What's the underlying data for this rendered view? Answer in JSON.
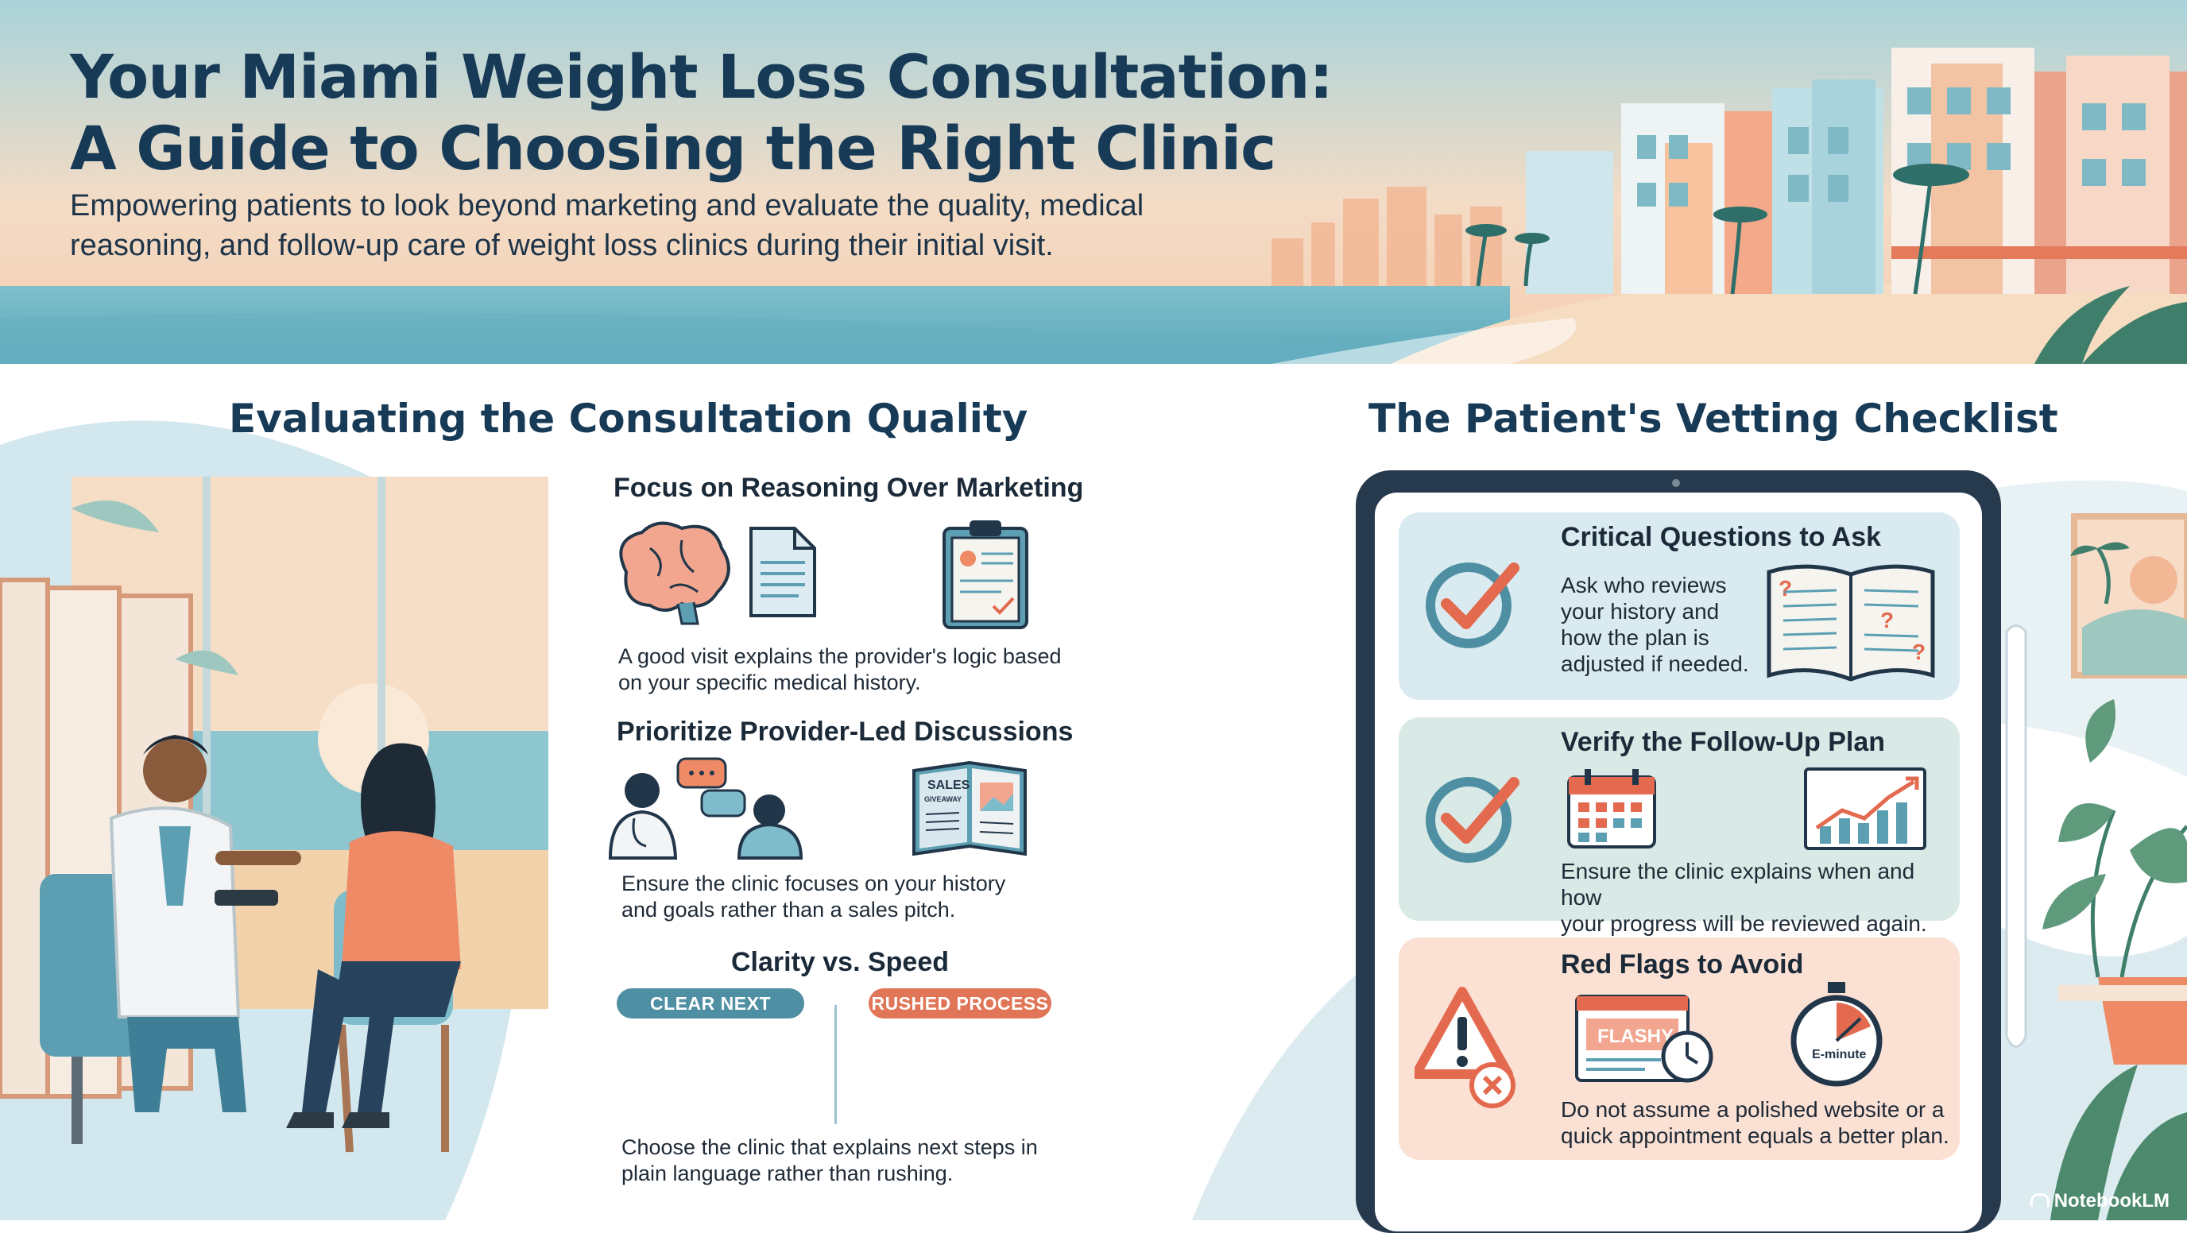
{
  "header": {
    "title_line1": "Your Miami Weight Loss Consultation:",
    "title_line2": "A Guide to Choosing the Right Clinic",
    "subtitle_line1": "Empowering patients to look beyond marketing and evaluate the quality, medical",
    "subtitle_line2": "reasoning, and follow-up care of weight loss clinics during their initial visit."
  },
  "left_section": {
    "title": "Evaluating the Consultation Quality",
    "items": [
      {
        "heading": "Focus on Reasoning Over Marketing",
        "text_line1": "A good visit explains the provider's logic based",
        "text_line2": "on your specific medical history.",
        "icons": [
          "brain-icon",
          "document-icon",
          "clipboard-icon"
        ]
      },
      {
        "heading": "Prioritize Provider-Led Discussions",
        "text_line1": "Ensure the clinic focuses on your history",
        "text_line2": "and goals rather than a sales pitch.",
        "icons": [
          "doctor-patient-chat-icon",
          "sales-brochure-icon"
        ],
        "brochure_label_1": "SALES",
        "brochure_label_2": "GIVEAWAY"
      },
      {
        "heading": "Clarity vs. Speed",
        "pill_left": "CLEAR NEXT STEPS",
        "pill_right": "RUSHED PROCESS",
        "text_line1": "Choose the clinic that explains next steps in",
        "text_line2": "plain language rather than rushing."
      }
    ]
  },
  "right_section": {
    "title": "The Patient's Vetting Checklist",
    "cards": [
      {
        "heading": "Critical Questions to Ask",
        "text_lines": [
          "Ask who reviews",
          "your history and",
          "how the plan is",
          "adjusted if needed."
        ],
        "icons": [
          "checkmark-icon",
          "open-book-question-icon"
        ],
        "color": "#d9eaf0"
      },
      {
        "heading": "Verify the Follow-Up Plan",
        "text_line1": "Ensure the clinic explains when and how",
        "text_line2": "your progress will be reviewed again.",
        "icons": [
          "checkmark-icon",
          "calendar-icon",
          "progress-chart-icon"
        ],
        "color": "#d8e9e6"
      },
      {
        "heading": "Red Flags to Avoid",
        "text_line1": "Do not assume a polished website or a",
        "text_line2": "quick appointment equals a better plan.",
        "icons": [
          "warning-icon",
          "flashy-website-icon",
          "stopwatch-icon"
        ],
        "flashy_label": "FLASHY",
        "stopwatch_label": "E-minute",
        "color": "#fbe0d4"
      }
    ]
  },
  "brand": "NotebookLM",
  "colors": {
    "navy": "#173a57",
    "teal": "#4f8fa3",
    "coral": "#e07557",
    "check": "#e36a4e"
  }
}
